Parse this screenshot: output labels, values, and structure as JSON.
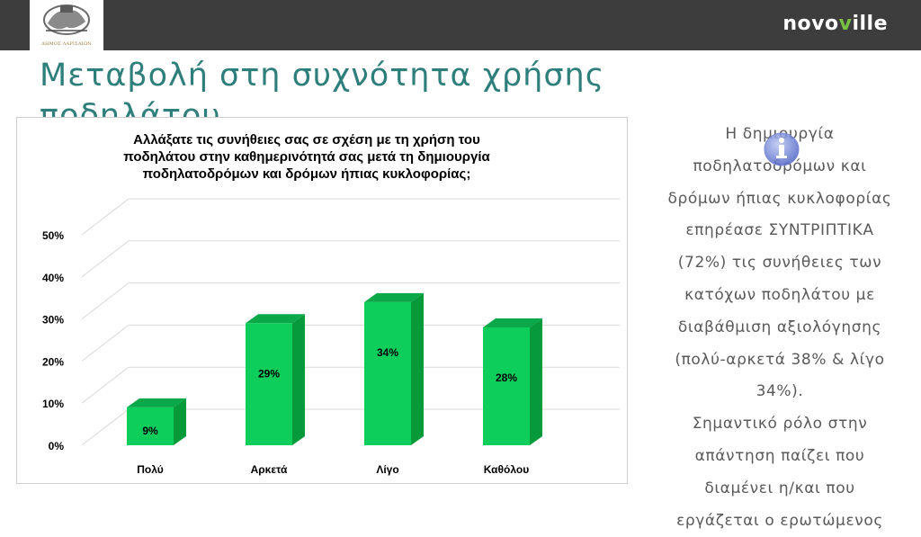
{
  "header": {
    "logo_caption": "ΔΗΜΟΣ ΛΑΡΙΣΑΙΩΝ",
    "brand": {
      "prefix": "novo",
      "v": "v",
      "suffix": "ille",
      "check_color": "#79c142"
    }
  },
  "slide": {
    "title": "Μεταβολή στη συχνότητα χρήσης ποδηλάτου"
  },
  "chart_data": {
    "type": "bar",
    "title": "Αλλάξατε τις συνήθειες σας σε σχέση με τη χρήση του ποδηλάτου στην καθημερινότητά σας μετά τη δημιουργία ποδηλατοδρόμων και δρόμων ήπιας κυκλοφορίας;",
    "title_lines": [
      "Αλλάξατε τις συνήθειες σας σε σχέση με τη χρήση του",
      "ποδηλάτου στην καθημερινότητά σας μετά τη δημιουργία",
      "ποδηλατοδρόμων και δρόμων ήπιας κυκλοφορίας;"
    ],
    "categories": [
      "Πολύ",
      "Αρκετά",
      "Λίγο",
      "Καθόλου"
    ],
    "values": [
      9,
      29,
      34,
      28
    ],
    "data_labels": [
      "9%",
      "29%",
      "34%",
      "28%"
    ],
    "y_ticks": [
      "0%",
      "10%",
      "20%",
      "30%",
      "40%",
      "50%"
    ],
    "ylim": [
      0,
      50
    ],
    "grid": true,
    "style": "3d",
    "colors": {
      "front": "#0dcd5b",
      "side": "#069a3b",
      "top": "#0aa848",
      "grid": "#d9d9d9"
    }
  },
  "side_panel": {
    "lines": [
      "Η δημιουργία",
      "ποδηλατοδρόμων και",
      "δρόμων ήπιας κυκλοφορίας",
      "επηρέασε ΣΥΝΤΡΙΠΤΙΚΑ",
      "(72%) τις συνήθειες των",
      "κατόχων ποδηλάτου με",
      "διαβάθμιση αξιολόγησης",
      "(πολύ-αρκετά 38% & λίγο",
      "34%).",
      "Σημαντικό ρόλο στην",
      "απάντηση παίζει που",
      "διαμένει η/και που",
      "εργάζεται ο ερωτώμενος"
    ],
    "info_icon": "info-icon"
  }
}
